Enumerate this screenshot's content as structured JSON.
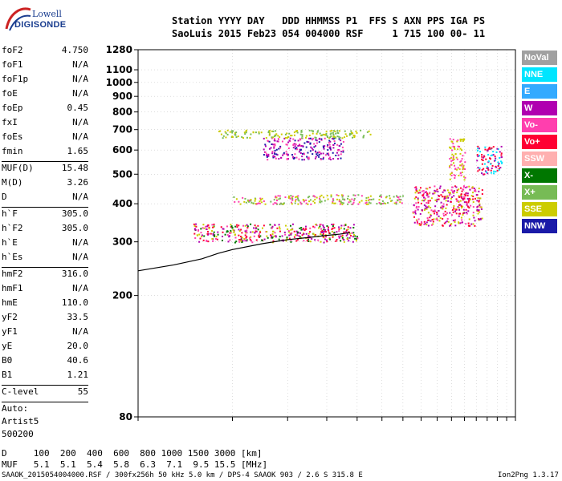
{
  "logo": {
    "brand_top": "Lowell",
    "brand_bottom": "DIGISONDE"
  },
  "header": {
    "line1": "Station YYYY DAY   DDD HHMMSS P1  FFS S AXN PPS IGA PS",
    "line2": "SaoLuis 2015 Feb23 054 004000 RSF     1 715 100 00- 11"
  },
  "params": {
    "group1": [
      {
        "name": "foF2",
        "value": "4.750"
      },
      {
        "name": "foF1",
        "value": "N/A"
      },
      {
        "name": "foF1p",
        "value": "N/A"
      },
      {
        "name": "foE",
        "value": "N/A"
      },
      {
        "name": "foEp",
        "value": "0.45"
      },
      {
        "name": "fxI",
        "value": "N/A"
      },
      {
        "name": "foEs",
        "value": "N/A"
      },
      {
        "name": "fmin",
        "value": "1.65"
      }
    ],
    "group2": [
      {
        "name": "MUF(D)",
        "value": "15.48"
      },
      {
        "name": "M(D)",
        "value": "3.26"
      },
      {
        "name": "D",
        "value": "N/A"
      }
    ],
    "group3": [
      {
        "name": "h`F",
        "value": "305.0"
      },
      {
        "name": "h`F2",
        "value": "305.0"
      },
      {
        "name": "h`E",
        "value": "N/A"
      },
      {
        "name": "h`Es",
        "value": "N/A"
      }
    ],
    "group4": [
      {
        "name": "hmF2",
        "value": "316.0"
      },
      {
        "name": "hmF1",
        "value": "N/A"
      },
      {
        "name": "hmE",
        "value": "110.0"
      },
      {
        "name": "yF2",
        "value": "33.5"
      },
      {
        "name": "yF1",
        "value": "N/A"
      },
      {
        "name": "yE",
        "value": "20.0"
      },
      {
        "name": "B0",
        "value": "40.6"
      },
      {
        "name": "B1",
        "value": "1.21"
      }
    ],
    "group5": [
      {
        "name": "C-level",
        "value": "55"
      }
    ],
    "auto": [
      "Auto:",
      "Artist5",
      "500200"
    ]
  },
  "legend": [
    {
      "label": "NoVal",
      "color": "#a0a0a0"
    },
    {
      "label": "NNE",
      "color": "#00e5ff"
    },
    {
      "label": "E",
      "color": "#33aaff"
    },
    {
      "label": "W",
      "color": "#b000b0"
    },
    {
      "label": "Vo-",
      "color": "#ff3fae"
    },
    {
      "label": "Vo+",
      "color": "#ff0033"
    },
    {
      "label": "SSW",
      "color": "#ffb0b0"
    },
    {
      "label": "X-",
      "color": "#007700"
    },
    {
      "label": "X+",
      "color": "#77bb55"
    },
    {
      "label": "SSE",
      "color": "#cccc00"
    },
    {
      "label": "NNW",
      "color": "#1a1aa8"
    }
  ],
  "footer": {
    "line1": "D     100  200  400  600  800 1000 1500 3000 [km]",
    "line2": "MUF   5.1  5.1  5.4  5.8  6.3  7.1  9.5 15.5 [MHz]",
    "line3_left": "SAAOK_2015054004000.RSF / 300fx256h 50 kHz 5.0 km / DPS-4 SAAOK 903 / 2.6 S 315.8 E",
    "line3_right": "Ion2Png 1.3.17"
  },
  "chart_data": {
    "type": "scatter",
    "title": "",
    "xlabel": "",
    "ylabel": "",
    "xlim": [
      1,
      16
    ],
    "ylim": [
      80,
      1280
    ],
    "x_scale": "log",
    "y_scale": "log",
    "x_ticks": [
      1,
      2,
      3,
      4,
      5,
      6,
      7,
      8,
      9,
      10,
      11,
      12,
      13,
      14,
      15,
      16
    ],
    "y_ticks": [
      80,
      200,
      300,
      400,
      500,
      600,
      700,
      800,
      900,
      1000,
      1100,
      1280
    ],
    "grid": true,
    "trace": {
      "x": [
        1.0,
        1.3,
        1.6,
        1.8,
        2.0,
        2.5,
        3.0,
        3.5,
        4.0,
        4.4,
        4.75
      ],
      "y": [
        241,
        252,
        264,
        275,
        283,
        296,
        305,
        310,
        315,
        318,
        322
      ]
    },
    "echo_clusters": [
      {
        "x": [
          1.5,
          5.0
        ],
        "y": [
          300,
          345
        ],
        "colors": [
          "#ff0033",
          "#ff3fae",
          "#b000b0",
          "#007700",
          "#cccc00"
        ]
      },
      {
        "x": [
          2.5,
          4.5
        ],
        "y": [
          560,
          660
        ],
        "colors": [
          "#b000b0",
          "#1a1aa8",
          "#ff3fae"
        ]
      },
      {
        "x": [
          1.8,
          5.5
        ],
        "y": [
          660,
          700
        ],
        "colors": [
          "#cccc00",
          "#77bb55"
        ]
      },
      {
        "x": [
          2.0,
          7.0
        ],
        "y": [
          400,
          430
        ],
        "colors": [
          "#cccc00",
          "#77bb55",
          "#ff3fae"
        ]
      },
      {
        "x": [
          7.5,
          12.5
        ],
        "y": [
          340,
          460
        ],
        "colors": [
          "#ff0033",
          "#ff3fae",
          "#cccc00",
          "#b000b0"
        ]
      },
      {
        "x": [
          9.8,
          11.0
        ],
        "y": [
          480,
          660
        ],
        "colors": [
          "#cccc00",
          "#ff3fae"
        ]
      },
      {
        "x": [
          12.0,
          14.5
        ],
        "y": [
          500,
          620
        ],
        "colors": [
          "#00e5ff",
          "#ff0033",
          "#b000b0"
        ]
      }
    ]
  }
}
